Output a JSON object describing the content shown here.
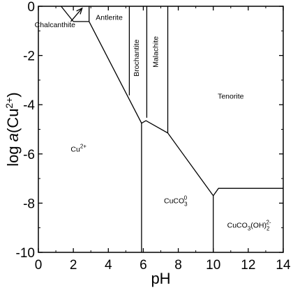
{
  "chart_data": {
    "type": "predominance-diagram",
    "x_axis": {
      "label": "pH",
      "min": 0,
      "max": 14,
      "ticks": [
        "0",
        "2",
        "4",
        "6",
        "8",
        "10",
        "12",
        "14"
      ]
    },
    "y_axis": {
      "label_prefix": "log ",
      "label_italic": "a",
      "label_species": "Cu",
      "label_charge": "2+",
      "label_open": "(",
      "label_close": ")",
      "min": -10,
      "max": 0,
      "ticks": [
        "0",
        "-2",
        "-4",
        "-6",
        "-8",
        "-10"
      ]
    },
    "regions": [
      {
        "name": "chalcanthite",
        "text": "Chalcanthite",
        "x": 0.95,
        "y": -0.85
      },
      {
        "name": "antlerite",
        "text": "Antlerite",
        "x": 4.05,
        "y": -0.55
      },
      {
        "name": "brochantite",
        "text": "Brochantite",
        "x": 5.75,
        "y": -2.1,
        "vertical": true
      },
      {
        "name": "malachite",
        "text": "Malachite",
        "x": 6.85,
        "y": -1.85,
        "vertical": true
      },
      {
        "name": "tenorite",
        "text": "Tenorite",
        "x": 11.0,
        "y": -3.75
      },
      {
        "name": "cu2plus",
        "main": "Cu",
        "sup": "2+",
        "x": 2.3,
        "y": -5.9
      },
      {
        "name": "cuco3",
        "main": "CuCO",
        "sub": "3",
        "sup": "0",
        "x": 7.85,
        "y": -8.0
      },
      {
        "name": "cuco3oh2",
        "main": "CuCO",
        "sub": "3",
        "mid": "(OH)",
        "sub2": "2",
        "sup": "2-",
        "x": 12.05,
        "y": -9.0
      }
    ],
    "boundaries": [
      {
        "name": "chalcanthite-upper",
        "points": [
          [
            1.3,
            0
          ],
          [
            2.0,
            -0.62
          ]
        ]
      },
      {
        "name": "chalcanthite-bottom",
        "points": [
          [
            2.0,
            -0.62
          ],
          [
            2.9,
            -0.62
          ]
        ]
      },
      {
        "name": "chalcanthite-antlerite",
        "points": [
          [
            2.9,
            0
          ],
          [
            2.9,
            -0.62
          ]
        ]
      },
      {
        "name": "arrow-shaft",
        "points": [
          [
            1.85,
            -0.62
          ],
          [
            2.5,
            -0.08
          ]
        ]
      },
      {
        "name": "cu-solids-boundary",
        "points": [
          [
            2.9,
            -0.62
          ],
          [
            5.9,
            -4.75
          ],
          [
            6.15,
            -4.65
          ],
          [
            7.4,
            -5.15
          ],
          [
            10.0,
            -7.7
          ]
        ]
      },
      {
        "name": "antlerite-brochantite",
        "points": [
          [
            5.2,
            0
          ],
          [
            5.2,
            -3.62
          ]
        ]
      },
      {
        "name": "brochantite-malachite",
        "points": [
          [
            6.2,
            0
          ],
          [
            6.2,
            -4.53
          ]
        ]
      },
      {
        "name": "malachite-tenorite",
        "points": [
          [
            7.4,
            0
          ],
          [
            7.4,
            -5.15
          ]
        ]
      },
      {
        "name": "cu2plus-cuco3",
        "points": [
          [
            5.9,
            -4.75
          ],
          [
            5.9,
            -10
          ]
        ]
      },
      {
        "name": "cuco3-cuco3oh2",
        "points": [
          [
            10.0,
            -7.7
          ],
          [
            10.0,
            -10
          ]
        ]
      },
      {
        "name": "tenorite-cuco3oh2",
        "points": [
          [
            10.0,
            -7.7
          ],
          [
            10.3,
            -7.4
          ],
          [
            14,
            -7.4
          ]
        ]
      }
    ],
    "arrows": [
      {
        "name": "chalcanthite-arrow",
        "from": [
          1.85,
          -0.62
        ],
        "to": [
          2.5,
          -0.08
        ]
      }
    ]
  }
}
